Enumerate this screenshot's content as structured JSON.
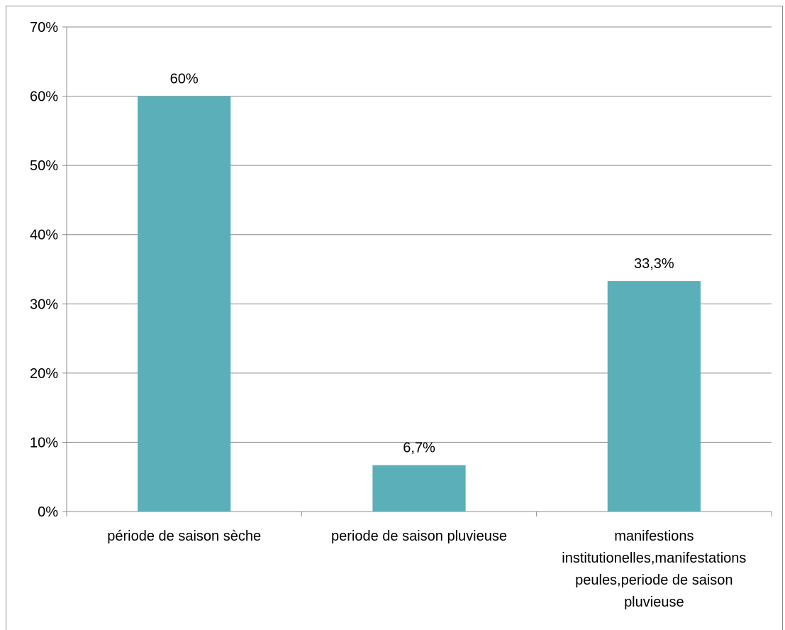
{
  "chart_data": {
    "type": "bar",
    "categories": [
      "période de saison sèche",
      "periode de saison pluvieuse",
      "manifestions institutionelles,manifestations peules,periode de saison pluvieuse"
    ],
    "category_lines": [
      [
        "période de saison sèche"
      ],
      [
        "periode de saison pluvieuse"
      ],
      [
        "manifestions",
        "institutionelles,manifestations",
        "peules,periode de saison",
        "pluvieuse"
      ]
    ],
    "values": [
      60,
      6.7,
      33.3
    ],
    "data_labels": [
      "60%",
      "6,7%",
      "33,3%"
    ],
    "yticks": [
      "0%",
      "10%",
      "20%",
      "30%",
      "40%",
      "50%",
      "60%",
      "70%"
    ],
    "ylim": [
      0,
      70
    ],
    "title": "",
    "xlabel": "",
    "ylabel": "",
    "grid": true,
    "legend": "none",
    "bar_color": "#5aafb9",
    "grid_color": "#8c8c8c"
  }
}
